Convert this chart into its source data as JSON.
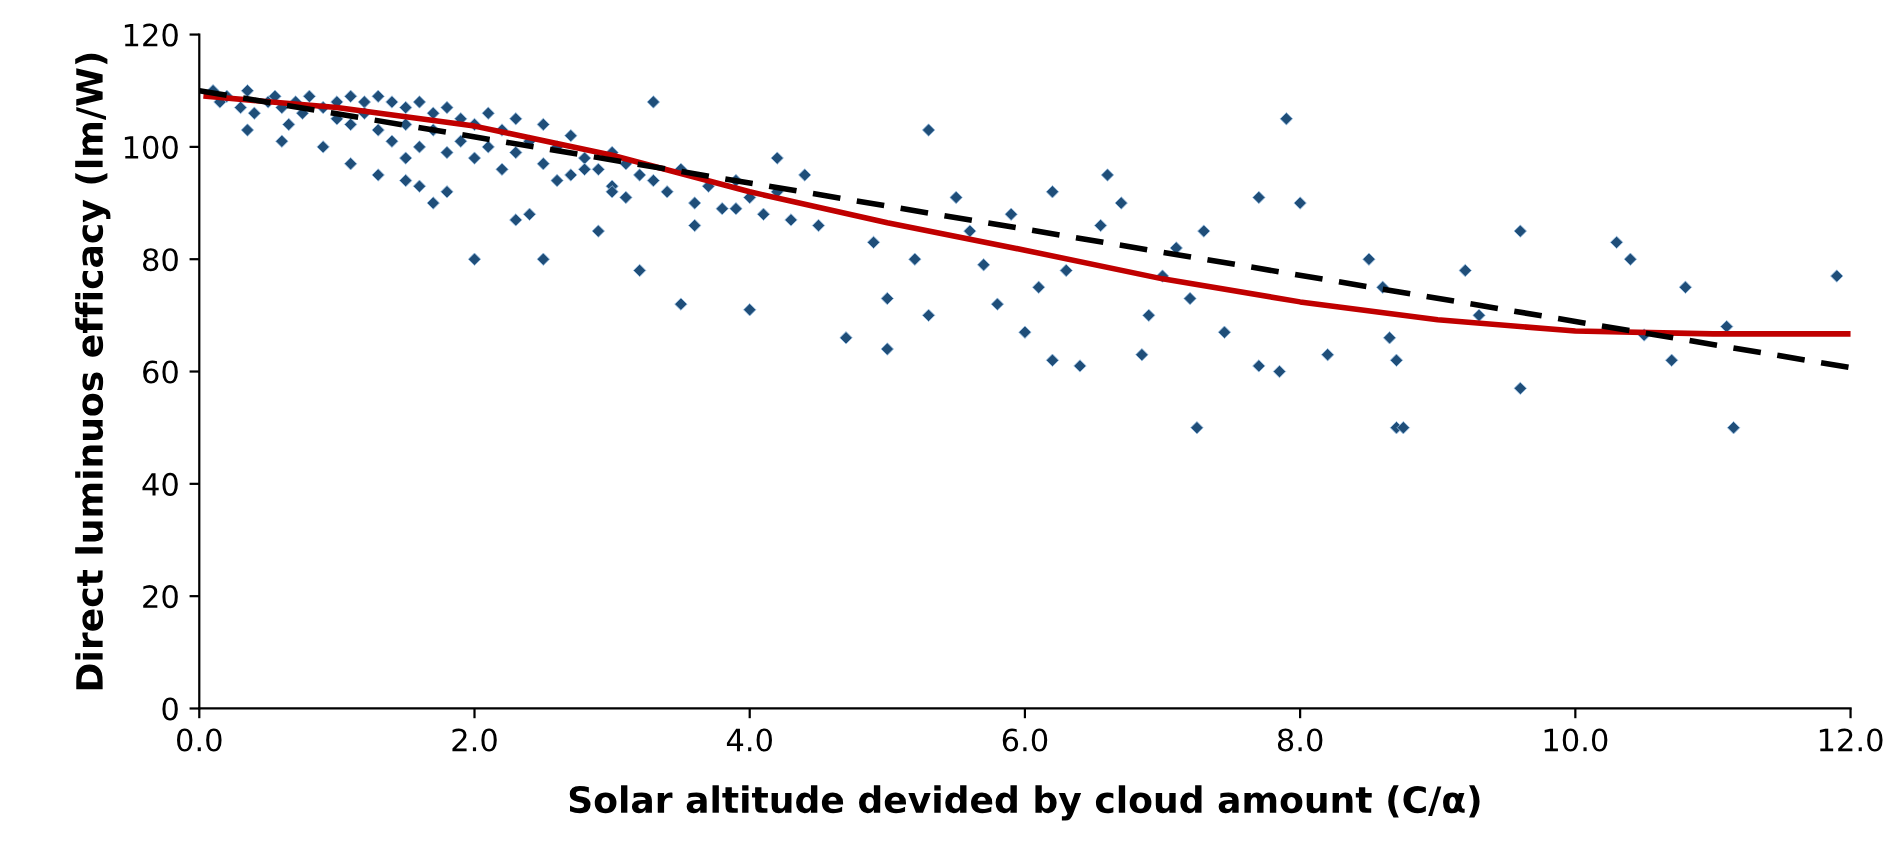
{
  "chart_data": {
    "type": "scatter",
    "xlabel": "Solar altitude devided by cloud amount (C/α)",
    "ylabel": "Direct luminuos efficacy (lm/W)",
    "xlim": [
      0,
      12
    ],
    "ylim": [
      0,
      120
    ],
    "xticks": [
      {
        "value": 0,
        "label": "0.0"
      },
      {
        "value": 2,
        "label": "2.0"
      },
      {
        "value": 4,
        "label": "4.0"
      },
      {
        "value": 6,
        "label": "6.0"
      },
      {
        "value": 8,
        "label": "8.0"
      },
      {
        "value": 10,
        "label": "10.0"
      },
      {
        "value": 12,
        "label": "12.0"
      }
    ],
    "yticks": [
      0,
      20,
      40,
      60,
      80,
      100,
      120
    ],
    "grid": false,
    "legend": false,
    "series": [
      {
        "color": "#1f4e79",
        "marker": "diamond",
        "x": [
          0.1,
          0.15,
          0.2,
          0.3,
          0.35,
          0.4,
          0.5,
          0.55,
          0.6,
          0.7,
          0.75,
          0.8,
          0.9,
          1.0,
          1.0,
          1.1,
          1.1,
          1.2,
          1.2,
          1.3,
          1.3,
          1.4,
          1.4,
          1.5,
          1.5,
          1.6,
          1.6,
          1.7,
          1.7,
          1.8,
          1.8,
          1.9,
          1.9,
          2.0,
          2.0,
          2.1,
          2.1,
          2.2,
          2.2,
          2.3,
          2.3,
          2.4,
          2.5,
          2.5,
          2.6,
          2.7,
          2.7,
          2.8,
          2.9,
          3.0,
          3.0,
          3.1,
          3.2,
          3.3,
          3.4,
          3.5,
          3.6,
          3.7,
          3.8,
          3.9,
          4.0,
          4.1,
          4.2,
          4.3,
          0.6,
          0.9,
          1.1,
          1.3,
          1.5,
          1.6,
          1.8,
          2.4,
          2.8,
          3.1,
          3.6,
          3.9,
          0.35,
          0.65,
          1.5,
          1.7,
          2.0,
          2.3,
          2.5,
          2.6,
          2.9,
          3.0,
          3.2,
          3.3,
          3.5,
          4.0,
          4.2,
          4.4,
          4.5,
          4.7,
          4.9,
          5.0,
          5.0,
          5.2,
          5.3,
          5.3,
          5.5,
          5.6,
          5.7,
          5.8,
          5.9,
          6.0,
          6.1,
          6.2,
          6.2,
          6.3,
          6.4,
          6.55,
          6.6,
          6.7,
          6.85,
          6.9,
          7.0,
          7.1,
          7.2,
          7.25,
          7.3,
          7.45,
          7.7,
          7.7,
          7.85,
          7.9,
          8.0,
          8.2,
          8.5,
          8.6,
          8.65,
          8.7,
          8.7,
          8.75,
          9.2,
          9.3,
          9.6,
          9.6,
          10.3,
          10.4,
          10.5,
          10.7,
          10.8,
          11.1,
          11.15,
          11.9
        ],
        "values": [
          110,
          108,
          109,
          107,
          110,
          106,
          108,
          109,
          107,
          108,
          106,
          109,
          107,
          108,
          105,
          109,
          104,
          108,
          106,
          109,
          103,
          108,
          101,
          107,
          104,
          108,
          100,
          106,
          103,
          107,
          99,
          105,
          101,
          104,
          98,
          106,
          100,
          103,
          96,
          105,
          99,
          101,
          104,
          97,
          100,
          102,
          95,
          98,
          96,
          99,
          93,
          97,
          95,
          94,
          92,
          96,
          90,
          93,
          89,
          94,
          91,
          88,
          92,
          87,
          101,
          100,
          97,
          95,
          98,
          93,
          92,
          88,
          96,
          91,
          86,
          89,
          103,
          104,
          94,
          90,
          80,
          87,
          80,
          94,
          85,
          92,
          78,
          108,
          72,
          71,
          98,
          95,
          86,
          66,
          83,
          64,
          73,
          80,
          103,
          70,
          91,
          85,
          79,
          72,
          88,
          67,
          75,
          62,
          92,
          78,
          61,
          86,
          95,
          90,
          63,
          70,
          77,
          82,
          73,
          50,
          85,
          67,
          91,
          61,
          60,
          105,
          90,
          63,
          80,
          75,
          66,
          62,
          50,
          50,
          78,
          70,
          85,
          57,
          83,
          80,
          66.5,
          62,
          75,
          68,
          50,
          77
        ]
      },
      {
        "type": "line",
        "color": "#c00000",
        "line_style": "solid",
        "marker": "none",
        "x": [
          0.05,
          1,
          2,
          3,
          4,
          5,
          6,
          7,
          8,
          9,
          10,
          11,
          12
        ],
        "values": [
          109,
          107,
          103.7,
          98.5,
          92,
          86.5,
          81.6,
          76.5,
          72.4,
          69.2,
          67.2,
          66.7,
          66.7
        ]
      },
      {
        "type": "line",
        "color": "#000000",
        "line_style": "dashed",
        "marker": "none",
        "x": [
          0,
          12
        ],
        "values": [
          110,
          60.7
        ]
      }
    ]
  }
}
